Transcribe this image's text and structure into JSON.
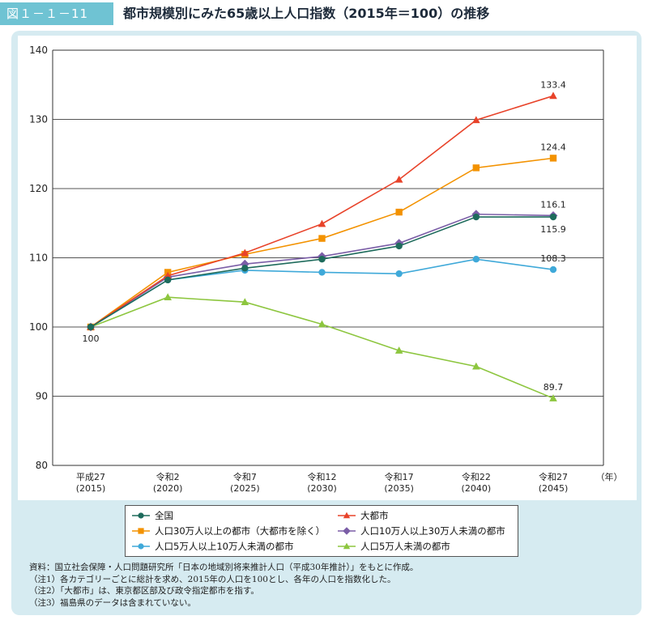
{
  "figure_label": "図１－１－11",
  "title": "都市規模別にみた65歳以上人口指数（2015年＝100）の推移",
  "chart_data": {
    "type": "line",
    "categories": [
      {
        "era": "平成27",
        "year": "(2015)"
      },
      {
        "era": "令和2",
        "year": "(2020)"
      },
      {
        "era": "令和7",
        "year": "(2025)"
      },
      {
        "era": "令和12",
        "year": "(2030)"
      },
      {
        "era": "令和17",
        "year": "(2035)"
      },
      {
        "era": "令和22",
        "year": "(2040)"
      },
      {
        "era": "令和27",
        "year": "(2045)"
      }
    ],
    "x_unit": "（年）",
    "ylim": [
      80,
      140
    ],
    "yticks": [
      80,
      90,
      100,
      110,
      120,
      130,
      140
    ],
    "grid": true,
    "series": [
      {
        "name": "全国",
        "color": "#1e6b5c",
        "marker": "circle",
        "values": [
          100,
          106.8,
          108.5,
          109.8,
          111.7,
          115.9,
          115.9
        ]
      },
      {
        "name": "大都市",
        "color": "#e8432a",
        "marker": "triangle",
        "values": [
          100,
          107.4,
          110.7,
          114.9,
          121.3,
          129.9,
          133.4
        ]
      },
      {
        "name": "人口30万人以上の都市（大都市を除く）",
        "color": "#f39200",
        "marker": "square",
        "values": [
          100,
          107.9,
          110.5,
          112.8,
          116.6,
          123.0,
          124.4
        ]
      },
      {
        "name": "人口10万人以上30万人未満の都市",
        "color": "#7b5ea7",
        "marker": "diamond",
        "values": [
          100,
          107.2,
          109.1,
          110.2,
          112.1,
          116.3,
          116.1
        ]
      },
      {
        "name": "人口5万人以上10万人未満の都市",
        "color": "#3fa9d9",
        "marker": "circle",
        "values": [
          100,
          106.8,
          108.2,
          107.9,
          107.7,
          109.8,
          108.3
        ]
      },
      {
        "name": "人口5万人未満の都市",
        "color": "#8dc63f",
        "marker": "triangle",
        "values": [
          100,
          104.3,
          103.6,
          100.4,
          96.6,
          94.3,
          89.7
        ]
      }
    ],
    "data_labels": [
      "100",
      "133.4",
      "124.4",
      "116.1",
      "115.9",
      "108.3",
      "89.7"
    ]
  },
  "notes": [
    "資料：国立社会保障・人口問題研究所「日本の地域別将来推計人口（平成30年推計）」をもとに作成。",
    "（注1）各カテゴリーごとに総計を求め、2015年の人口を100とし、各年の人口を指数化した。",
    "（注2）「大都市」は、東京都区部及び政令指定都市を指す。",
    "（注3）福島県のデータは含まれていない。"
  ]
}
